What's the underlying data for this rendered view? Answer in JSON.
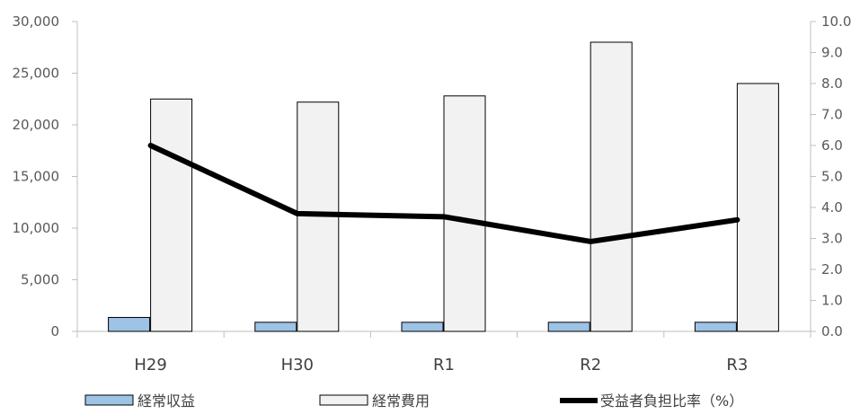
{
  "chart_data": {
    "type": "bar",
    "categories": [
      "H29",
      "H30",
      "R1",
      "R2",
      "R3"
    ],
    "series": [
      {
        "name": "経常収益",
        "kind": "bar",
        "axis": "left",
        "color": "#9DC3E6",
        "values": [
          1350,
          880,
          880,
          880,
          880
        ]
      },
      {
        "name": "経常費用",
        "kind": "bar",
        "axis": "left",
        "color": "#F2F2F2",
        "values": [
          22500,
          22200,
          22800,
          28000,
          24000
        ]
      },
      {
        "name": "受益者負担比率（%）",
        "kind": "line",
        "axis": "right",
        "color": "#000000",
        "values": [
          6.0,
          3.8,
          3.7,
          2.9,
          3.6
        ]
      }
    ],
    "y_left": {
      "min": 0,
      "max": 30000,
      "ticks": [
        "0",
        "5,000",
        "10,000",
        "15,000",
        "20,000",
        "25,000",
        "30,000"
      ]
    },
    "y_right": {
      "min": 0,
      "max": 10,
      "ticks": [
        "0.0",
        "1.0",
        "2.0",
        "3.0",
        "4.0",
        "5.0",
        "6.0",
        "7.0",
        "8.0",
        "9.0",
        "10.0"
      ]
    },
    "grid": false,
    "legend": "bottom"
  }
}
